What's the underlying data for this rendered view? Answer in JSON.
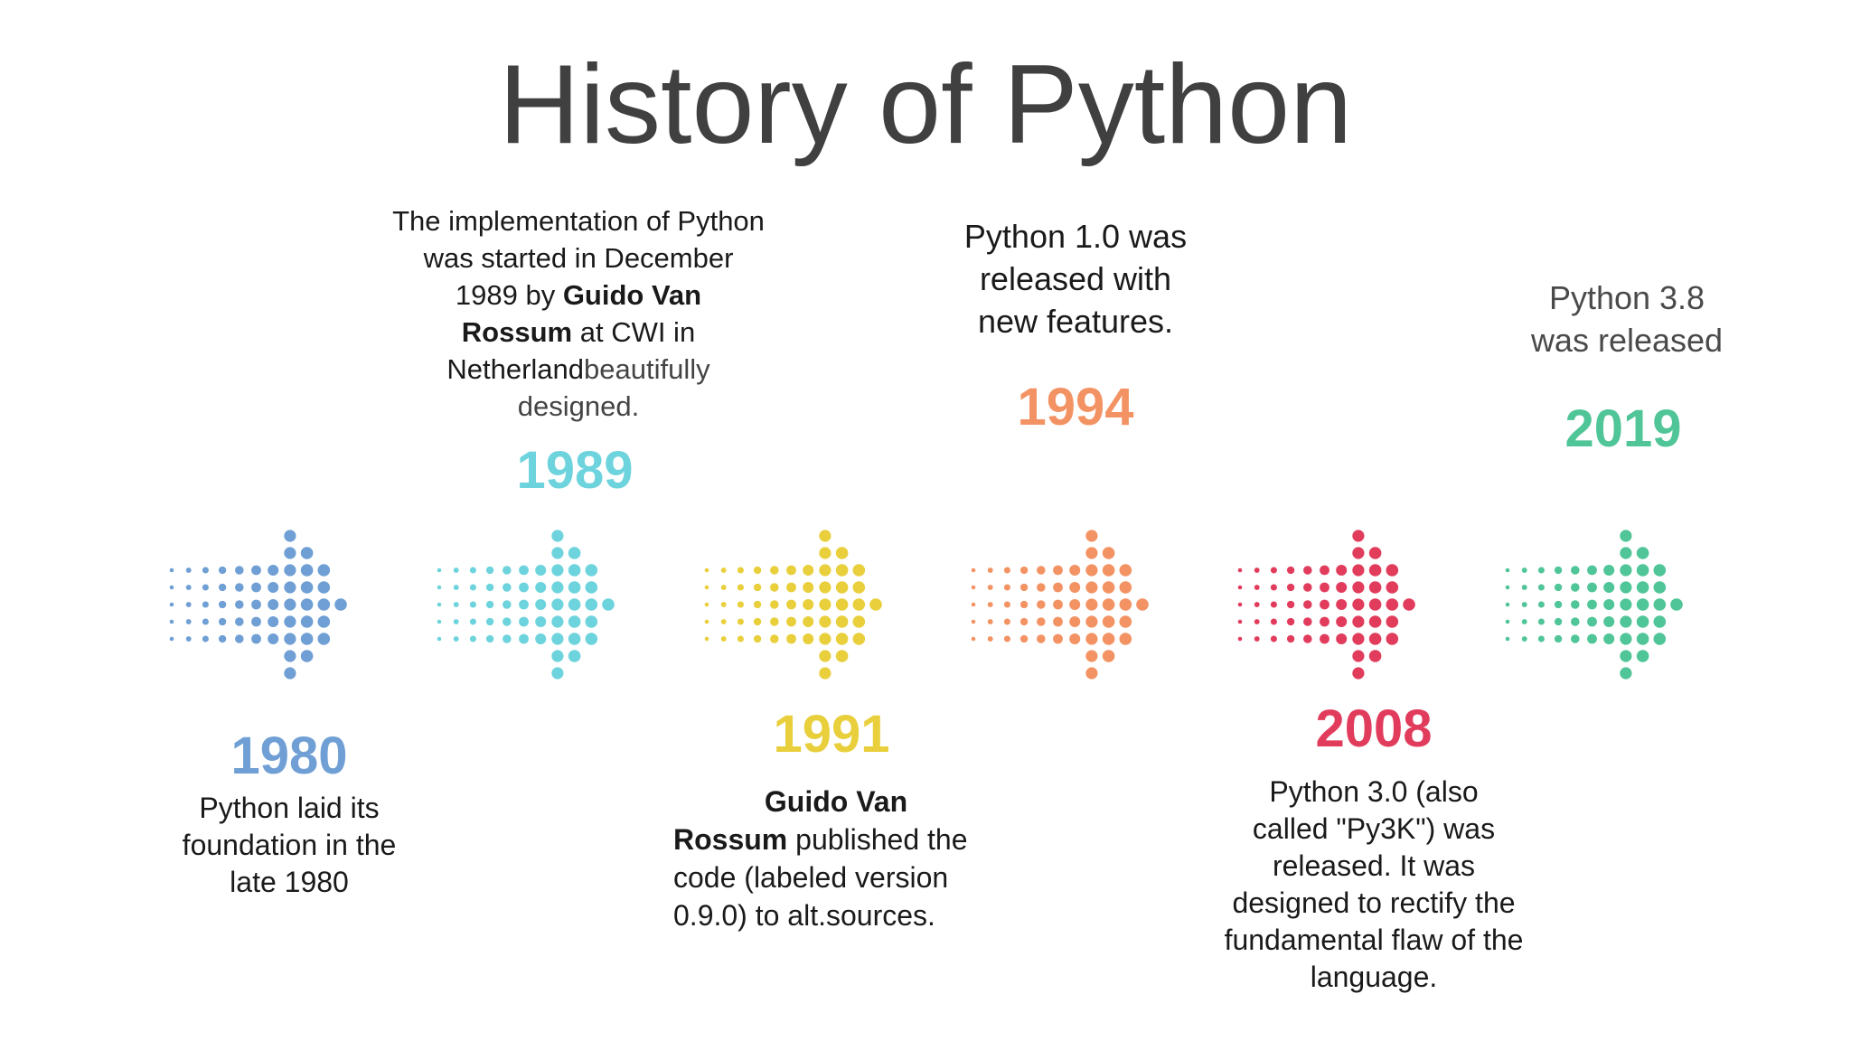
{
  "title": "History of Python",
  "events": [
    {
      "year": "1980",
      "color": "#6f9fd4",
      "desc": {
        "line1": "Python laid its",
        "line2": "foundation in the",
        "line3": "late 1980"
      }
    },
    {
      "year": "1989",
      "color": "#6dd3dd",
      "desc": {
        "line1": "The implementation  of Python",
        "line2": "was started in December",
        "line3a": "1989 by ",
        "line3b": "Guido Van",
        "line4a": "Rossum",
        "line4b": " at CWI in",
        "line5a": "Netherland",
        "line5b": "beautifully",
        "line6": "designed."
      }
    },
    {
      "year": "1991",
      "color": "#e9cf3b",
      "desc": {
        "line1": "Guido Van",
        "line2a": "Rossum",
        "line2b": " published  the",
        "line3": "code (labeled version",
        "line4": "0.9.0) to alt.sources."
      }
    },
    {
      "year": "1994",
      "color": "#f39364",
      "desc": {
        "line1": "Python 1.0 was",
        "line2": "released with",
        "line3": "new features."
      }
    },
    {
      "year": "2008",
      "color": "#e23c5d",
      "desc": {
        "line1": "Python  3.0  (also",
        "line2": "called \"Py3K\") was",
        "line3": "released. It was",
        "line4": "designed to rectify the",
        "line5": "fundamental flaw of the",
        "line6": "language."
      }
    },
    {
      "year": "2019",
      "color": "#4fc598",
      "desc": {
        "line1": "Python 3.8",
        "line2": "was released"
      }
    }
  ]
}
